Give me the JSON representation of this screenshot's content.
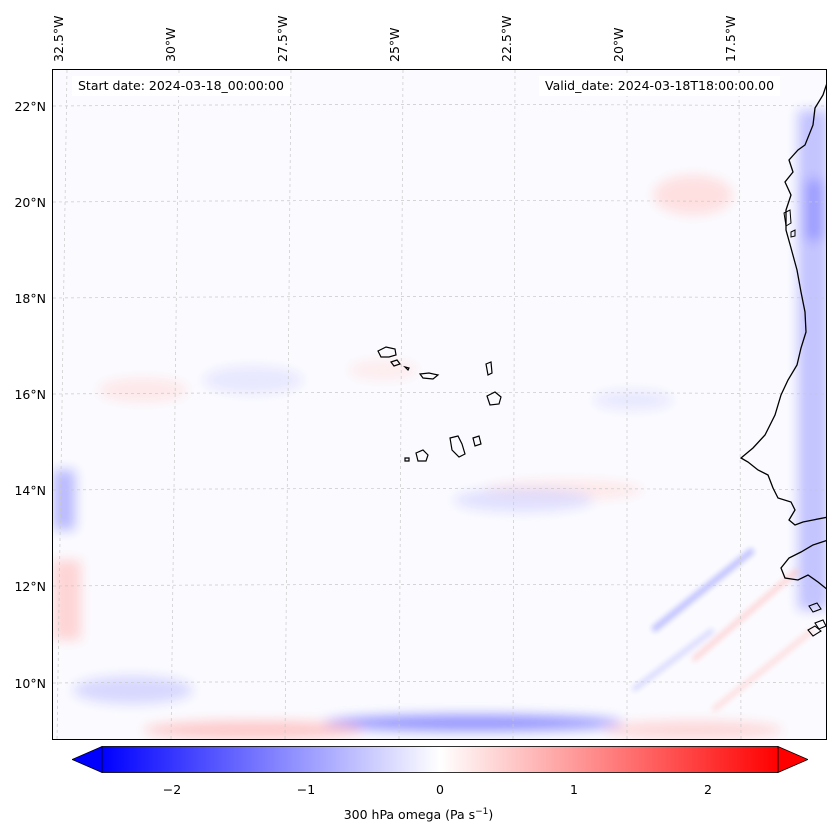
{
  "map": {
    "start_date": "Start date: 2024-03-18_00:00:00",
    "valid_date": "Valid_date: 2024-03-18T18:00:00.00",
    "latitude_labels": [
      "22°N",
      "20°N",
      "18°N",
      "16°N",
      "14°N",
      "12°N",
      "10°N"
    ],
    "longitude_labels": [
      "32.5°W",
      "30°W",
      "27.5°W",
      "25°W",
      "22.5°W",
      "20°W",
      "17.5°W"
    ],
    "features": [
      "cape-verde-islands",
      "west-african-coastline",
      "gridlines",
      "omega-field"
    ]
  },
  "colorbar": {
    "ticks": [
      "−2",
      "−1",
      "0",
      "1",
      "2"
    ],
    "tick_values": [
      -2,
      -1,
      0,
      1,
      2
    ],
    "range": [
      -2.6,
      2.6
    ],
    "label": "300 hPa omega (Pa s",
    "label_exponent": "−1",
    "label_close": ")",
    "colormap": "bwr",
    "min_color": "#0000ff",
    "mid_color": "#ffffff",
    "max_color": "#ff0000"
  }
}
